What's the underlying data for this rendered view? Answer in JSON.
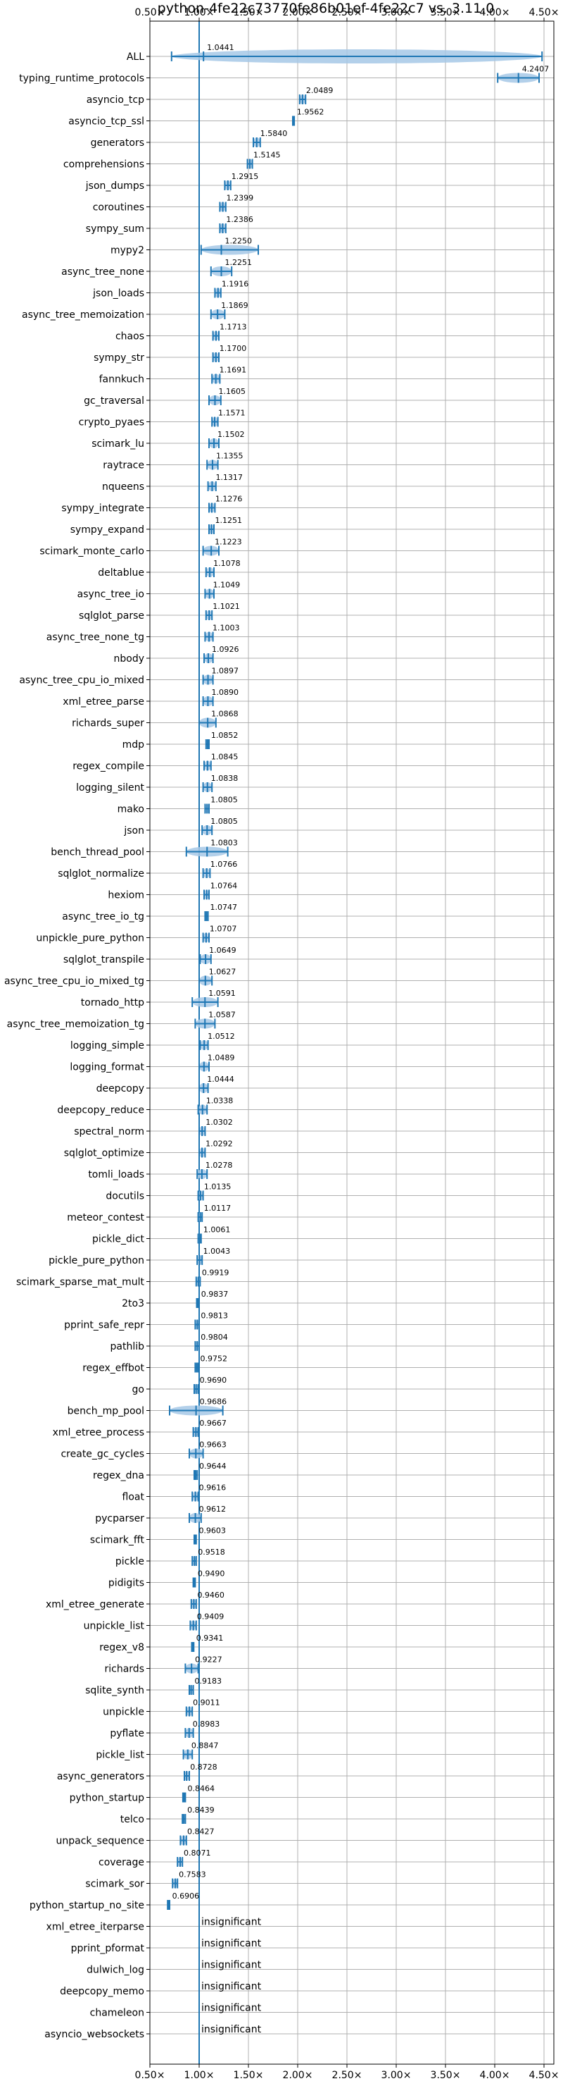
{
  "chart_data": {
    "type": "violin",
    "title": "python-4fe22c73770fe86b01ef-4fe22c7 vs. 3.11.0",
    "xlim": [
      0.5,
      4.6
    ],
    "xticks": [
      0.5,
      1.0,
      1.5,
      2.0,
      2.5,
      3.0,
      3.5,
      4.0,
      4.5
    ],
    "xtick_labels": [
      "0.50×",
      "1.00×",
      "1.50×",
      "2.00×",
      "2.50×",
      "3.00×",
      "3.50×",
      "4.00×",
      "4.50×"
    ],
    "reference_line": 1.0,
    "grid": true,
    "color": "#1f77b4",
    "fill_color": "#a6c8e6",
    "insignificant_label": "insignificant",
    "benchmarks": [
      {
        "name": "ALL",
        "value": 1.0441,
        "label": "1.0441",
        "low": 0.72,
        "high": 4.48
      },
      {
        "name": "typing_runtime_protocols",
        "value": 4.2407,
        "label": "4.2407",
        "low": 4.03,
        "high": 4.45
      },
      {
        "name": "asyncio_tcp",
        "value": 2.0489,
        "label": "2.0489",
        "low": 2.02,
        "high": 2.08
      },
      {
        "name": "asyncio_tcp_ssl",
        "value": 1.9562,
        "label": "1.9562",
        "low": 1.95,
        "high": 1.965
      },
      {
        "name": "generators",
        "value": 1.584,
        "label": "1.5840",
        "low": 1.55,
        "high": 1.62
      },
      {
        "name": "comprehensions",
        "value": 1.5145,
        "label": "1.5145",
        "low": 1.49,
        "high": 1.54
      },
      {
        "name": "json_dumps",
        "value": 1.2915,
        "label": "1.2915",
        "low": 1.26,
        "high": 1.32
      },
      {
        "name": "coroutines",
        "value": 1.2399,
        "label": "1.2399",
        "low": 1.21,
        "high": 1.27
      },
      {
        "name": "sympy_sum",
        "value": 1.2386,
        "label": "1.2386",
        "low": 1.21,
        "high": 1.27
      },
      {
        "name": "mypy2",
        "value": 1.225,
        "label": "1.2250",
        "low": 1.02,
        "high": 1.6
      },
      {
        "name": "async_tree_none",
        "value": 1.2251,
        "label": "1.2251",
        "low": 1.12,
        "high": 1.33
      },
      {
        "name": "json_loads",
        "value": 1.1916,
        "label": "1.1916",
        "low": 1.16,
        "high": 1.22
      },
      {
        "name": "async_tree_memoization",
        "value": 1.1869,
        "label": "1.1869",
        "low": 1.12,
        "high": 1.26
      },
      {
        "name": "chaos",
        "value": 1.1713,
        "label": "1.1713",
        "low": 1.14,
        "high": 1.2
      },
      {
        "name": "sympy_str",
        "value": 1.17,
        "label": "1.1700",
        "low": 1.14,
        "high": 1.2
      },
      {
        "name": "fannkuch",
        "value": 1.1691,
        "label": "1.1691",
        "low": 1.13,
        "high": 1.21
      },
      {
        "name": "gc_traversal",
        "value": 1.1605,
        "label": "1.1605",
        "low": 1.1,
        "high": 1.22
      },
      {
        "name": "crypto_pyaes",
        "value": 1.1571,
        "label": "1.1571",
        "low": 1.13,
        "high": 1.19
      },
      {
        "name": "scimark_lu",
        "value": 1.1502,
        "label": "1.1502",
        "low": 1.1,
        "high": 1.2
      },
      {
        "name": "raytrace",
        "value": 1.1355,
        "label": "1.1355",
        "low": 1.08,
        "high": 1.19
      },
      {
        "name": "nqueens",
        "value": 1.1317,
        "label": "1.1317",
        "low": 1.09,
        "high": 1.17
      },
      {
        "name": "sympy_integrate",
        "value": 1.1276,
        "label": "1.1276",
        "low": 1.1,
        "high": 1.16
      },
      {
        "name": "sympy_expand",
        "value": 1.1251,
        "label": "1.1251",
        "low": 1.1,
        "high": 1.15
      },
      {
        "name": "scimark_monte_carlo",
        "value": 1.1223,
        "label": "1.1223",
        "low": 1.04,
        "high": 1.2
      },
      {
        "name": "deltablue",
        "value": 1.1078,
        "label": "1.1078",
        "low": 1.07,
        "high": 1.15
      },
      {
        "name": "async_tree_io",
        "value": 1.1049,
        "label": "1.1049",
        "low": 1.06,
        "high": 1.15
      },
      {
        "name": "sqlglot_parse",
        "value": 1.1021,
        "label": "1.1021",
        "low": 1.07,
        "high": 1.13
      },
      {
        "name": "async_tree_none_tg",
        "value": 1.1003,
        "label": "1.1003",
        "low": 1.06,
        "high": 1.14
      },
      {
        "name": "nbody",
        "value": 1.0926,
        "label": "1.0926",
        "low": 1.05,
        "high": 1.14
      },
      {
        "name": "async_tree_cpu_io_mixed",
        "value": 1.0897,
        "label": "1.0897",
        "low": 1.04,
        "high": 1.14
      },
      {
        "name": "xml_etree_parse",
        "value": 1.089,
        "label": "1.0890",
        "low": 1.04,
        "high": 1.14
      },
      {
        "name": "richards_super",
        "value": 1.0868,
        "label": "1.0868",
        "low": 1.0,
        "high": 1.17
      },
      {
        "name": "mdp",
        "value": 1.0852,
        "label": "1.0852",
        "low": 1.07,
        "high": 1.1
      },
      {
        "name": "regex_compile",
        "value": 1.0845,
        "label": "1.0845",
        "low": 1.05,
        "high": 1.12
      },
      {
        "name": "logging_silent",
        "value": 1.0838,
        "label": "1.0838",
        "low": 1.04,
        "high": 1.13
      },
      {
        "name": "mako",
        "value": 1.0805,
        "label": "1.0805",
        "low": 1.06,
        "high": 1.1
      },
      {
        "name": "json",
        "value": 1.0805,
        "label": "1.0805",
        "low": 1.03,
        "high": 1.13
      },
      {
        "name": "bench_thread_pool",
        "value": 1.0803,
        "label": "1.0803",
        "low": 0.87,
        "high": 1.29
      },
      {
        "name": "sqlglot_normalize",
        "value": 1.0766,
        "label": "1.0766",
        "low": 1.04,
        "high": 1.11
      },
      {
        "name": "hexiom",
        "value": 1.0764,
        "label": "1.0764",
        "low": 1.05,
        "high": 1.1
      },
      {
        "name": "async_tree_io_tg",
        "value": 1.0747,
        "label": "1.0747",
        "low": 1.06,
        "high": 1.09
      },
      {
        "name": "unpickle_pure_python",
        "value": 1.0707,
        "label": "1.0707",
        "low": 1.04,
        "high": 1.1
      },
      {
        "name": "sqlglot_transpile",
        "value": 1.0649,
        "label": "1.0649",
        "low": 1.01,
        "high": 1.12
      },
      {
        "name": "async_tree_cpu_io_mixed_tg",
        "value": 1.0627,
        "label": "1.0627",
        "low": 1.0,
        "high": 1.13
      },
      {
        "name": "tornado_http",
        "value": 1.0591,
        "label": "1.0591",
        "low": 0.93,
        "high": 1.19
      },
      {
        "name": "async_tree_memoization_tg",
        "value": 1.0587,
        "label": "1.0587",
        "low": 0.96,
        "high": 1.16
      },
      {
        "name": "logging_simple",
        "value": 1.0512,
        "label": "1.0512",
        "low": 1.01,
        "high": 1.09
      },
      {
        "name": "logging_format",
        "value": 1.0489,
        "label": "1.0489",
        "low": 1.0,
        "high": 1.1
      },
      {
        "name": "deepcopy",
        "value": 1.0444,
        "label": "1.0444",
        "low": 1.0,
        "high": 1.09
      },
      {
        "name": "deepcopy_reduce",
        "value": 1.0338,
        "label": "1.0338",
        "low": 0.99,
        "high": 1.08
      },
      {
        "name": "spectral_norm",
        "value": 1.0302,
        "label": "1.0302",
        "low": 1.0,
        "high": 1.06
      },
      {
        "name": "sqlglot_optimize",
        "value": 1.0292,
        "label": "1.0292",
        "low": 1.0,
        "high": 1.06
      },
      {
        "name": "tomli_loads",
        "value": 1.0278,
        "label": "1.0278",
        "low": 0.98,
        "high": 1.08
      },
      {
        "name": "docutils",
        "value": 1.0135,
        "label": "1.0135",
        "low": 0.99,
        "high": 1.04
      },
      {
        "name": "meteor_contest",
        "value": 1.0117,
        "label": "1.0117",
        "low": 0.99,
        "high": 1.03
      },
      {
        "name": "pickle_dict",
        "value": 1.0061,
        "label": "1.0061",
        "low": 0.99,
        "high": 1.02
      },
      {
        "name": "pickle_pure_python",
        "value": 1.0043,
        "label": "1.0043",
        "low": 0.98,
        "high": 1.03
      },
      {
        "name": "scimark_sparse_mat_mult",
        "value": 0.9919,
        "label": "0.9919",
        "low": 0.97,
        "high": 1.01
      },
      {
        "name": "2to3",
        "value": 0.9837,
        "label": "0.9837",
        "low": 0.975,
        "high": 0.99
      },
      {
        "name": "pprint_safe_repr",
        "value": 0.9813,
        "label": "0.9813",
        "low": 0.96,
        "high": 1.0
      },
      {
        "name": "pathlib",
        "value": 0.9804,
        "label": "0.9804",
        "low": 0.96,
        "high": 1.0
      },
      {
        "name": "regex_effbot",
        "value": 0.9752,
        "label": "0.9752",
        "low": 0.96,
        "high": 0.99
      },
      {
        "name": "go",
        "value": 0.969,
        "label": "0.9690",
        "low": 0.95,
        "high": 0.99
      },
      {
        "name": "bench_mp_pool",
        "value": 0.9686,
        "label": "0.9686",
        "low": 0.7,
        "high": 1.24
      },
      {
        "name": "xml_etree_process",
        "value": 0.9667,
        "label": "0.9667",
        "low": 0.94,
        "high": 0.99
      },
      {
        "name": "create_gc_cycles",
        "value": 0.9663,
        "label": "0.9663",
        "low": 0.9,
        "high": 1.04
      },
      {
        "name": "regex_dna",
        "value": 0.9644,
        "label": "0.9644",
        "low": 0.95,
        "high": 0.98
      },
      {
        "name": "float",
        "value": 0.9616,
        "label": "0.9616",
        "low": 0.93,
        "high": 0.99
      },
      {
        "name": "pycparser",
        "value": 0.9612,
        "label": "0.9612",
        "low": 0.9,
        "high": 1.02
      },
      {
        "name": "scimark_fft",
        "value": 0.9603,
        "label": "0.9603",
        "low": 0.95,
        "high": 0.97
      },
      {
        "name": "pickle",
        "value": 0.9518,
        "label": "0.9518",
        "low": 0.93,
        "high": 0.97
      },
      {
        "name": "pidigits",
        "value": 0.949,
        "label": "0.9490",
        "low": 0.94,
        "high": 0.96
      },
      {
        "name": "xml_etree_generate",
        "value": 0.946,
        "label": "0.9460",
        "low": 0.92,
        "high": 0.97
      },
      {
        "name": "unpickle_list",
        "value": 0.9409,
        "label": "0.9409",
        "low": 0.91,
        "high": 0.97
      },
      {
        "name": "regex_v8",
        "value": 0.9341,
        "label": "0.9341",
        "low": 0.925,
        "high": 0.945
      },
      {
        "name": "richards",
        "value": 0.9227,
        "label": "0.9227",
        "low": 0.86,
        "high": 0.99
      },
      {
        "name": "sqlite_synth",
        "value": 0.9183,
        "label": "0.9183",
        "low": 0.9,
        "high": 0.94
      },
      {
        "name": "unpickle",
        "value": 0.9011,
        "label": "0.9011",
        "low": 0.87,
        "high": 0.93
      },
      {
        "name": "pyflate",
        "value": 0.8983,
        "label": "0.8983",
        "low": 0.86,
        "high": 0.94
      },
      {
        "name": "pickle_list",
        "value": 0.8847,
        "label": "0.8847",
        "low": 0.84,
        "high": 0.93
      },
      {
        "name": "async_generators",
        "value": 0.8728,
        "label": "0.8728",
        "low": 0.85,
        "high": 0.9
      },
      {
        "name": "python_startup",
        "value": 0.8464,
        "label": "0.8464",
        "low": 0.835,
        "high": 0.86
      },
      {
        "name": "telco",
        "value": 0.8439,
        "label": "0.8439",
        "low": 0.83,
        "high": 0.86
      },
      {
        "name": "unpack_sequence",
        "value": 0.8427,
        "label": "0.8427",
        "low": 0.81,
        "high": 0.87
      },
      {
        "name": "coverage",
        "value": 0.8071,
        "label": "0.8071",
        "low": 0.78,
        "high": 0.83
      },
      {
        "name": "scimark_sor",
        "value": 0.7583,
        "label": "0.7583",
        "low": 0.73,
        "high": 0.78
      },
      {
        "name": "python_startup_no_site",
        "value": 0.6906,
        "label": "0.6906",
        "low": 0.68,
        "high": 0.7
      },
      {
        "name": "xml_etree_iterparse",
        "value": null,
        "label": "",
        "low": null,
        "high": null
      },
      {
        "name": "pprint_pformat",
        "value": null,
        "label": "",
        "low": null,
        "high": null
      },
      {
        "name": "dulwich_log",
        "value": null,
        "label": "",
        "low": null,
        "high": null
      },
      {
        "name": "deepcopy_memo",
        "value": null,
        "label": "",
        "low": null,
        "high": null
      },
      {
        "name": "chameleon",
        "value": null,
        "label": "",
        "low": null,
        "high": null
      },
      {
        "name": "asyncio_websockets",
        "value": null,
        "label": "",
        "low": null,
        "high": null
      }
    ]
  }
}
